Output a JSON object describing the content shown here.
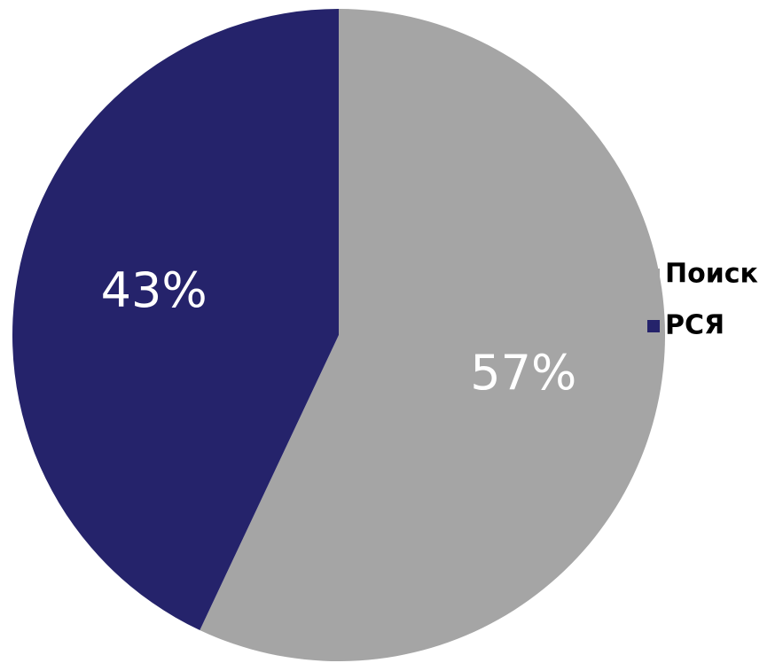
{
  "chart_data": {
    "type": "pie",
    "title": "",
    "start_angle_deg": 0,
    "direction": "clockwise",
    "legend_position": "right",
    "slices": [
      {
        "label": "Поиск",
        "value": 57,
        "value_label": "57%",
        "color": "#A5A5A5"
      },
      {
        "label": "РСЯ",
        "value": 43,
        "value_label": "43%",
        "color": "#25236B"
      }
    ]
  }
}
